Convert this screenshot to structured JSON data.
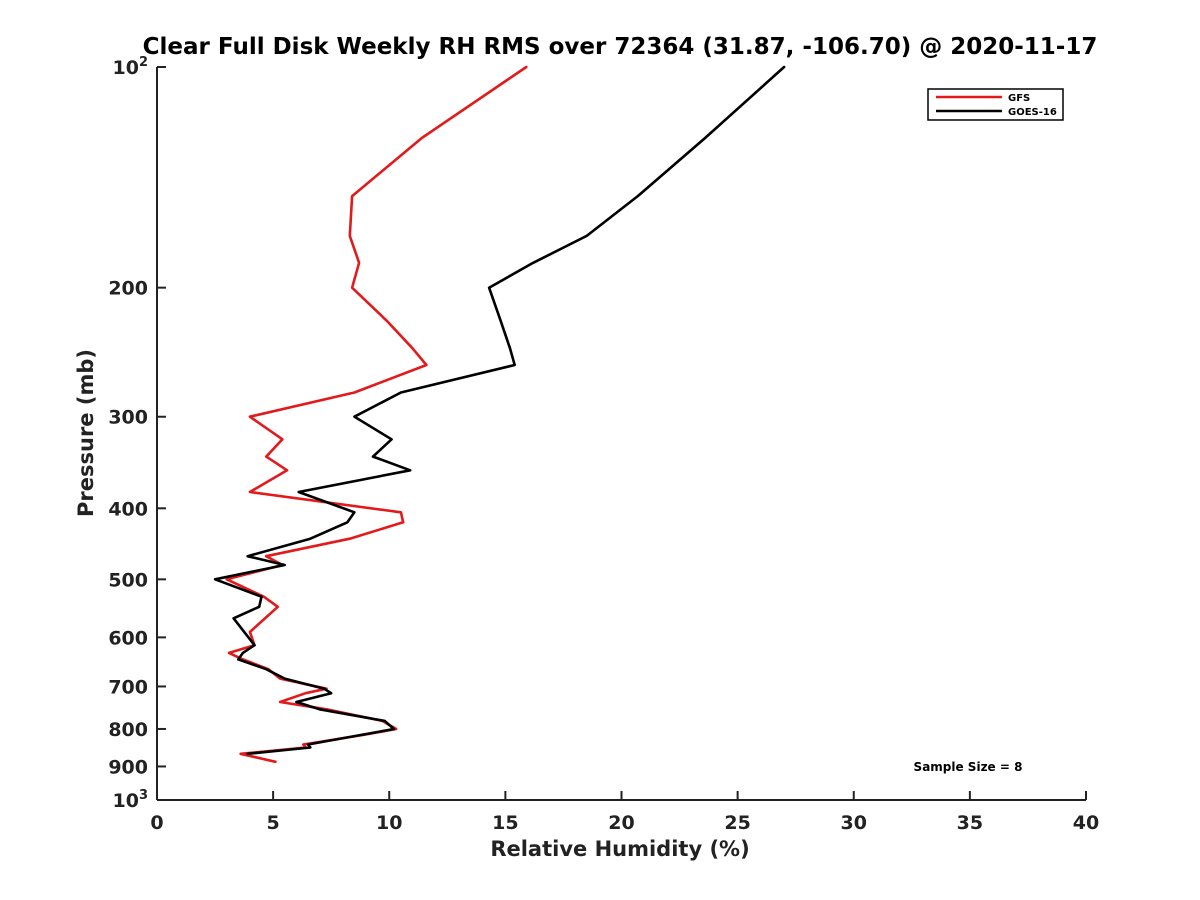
{
  "chart_data": {
    "type": "line",
    "title": "Clear Full Disk Weekly RH RMS over 72364 (31.87, -106.70) @ 2020-11-17",
    "xlabel": "Relative Humidity (%)",
    "ylabel": "Pressure (mb)",
    "xlim": [
      0,
      40
    ],
    "ylim": [
      100,
      1000
    ],
    "yscale": "log",
    "y_reversed": true,
    "x_ticks": [
      "0",
      "5",
      "10",
      "15",
      "20",
      "25",
      "30",
      "35",
      "40"
    ],
    "y_ticks": [
      {
        "value": 100,
        "base": "10",
        "exp": "2"
      },
      {
        "value": 200,
        "label": "200"
      },
      {
        "value": 300,
        "label": "300"
      },
      {
        "value": 400,
        "label": "400"
      },
      {
        "value": 500,
        "label": "500"
      },
      {
        "value": 600,
        "label": "600"
      },
      {
        "value": 700,
        "label": "700"
      },
      {
        "value": 800,
        "label": "800"
      },
      {
        "value": 900,
        "label": "900"
      },
      {
        "value": 1000,
        "base": "10",
        "exp": "3"
      }
    ],
    "legend_position": "top-right",
    "annotation": "Sample Size = 8",
    "series": [
      {
        "name": "GFS",
        "color": "#e31a1c",
        "points": [
          [
            15.9,
            100
          ],
          [
            11.4,
            125
          ],
          [
            8.4,
            150
          ],
          [
            8.3,
            170
          ],
          [
            8.7,
            185
          ],
          [
            8.4,
            200
          ],
          [
            9.9,
            222
          ],
          [
            11.0,
            242
          ],
          [
            11.6,
            255
          ],
          [
            8.5,
            278
          ],
          [
            4.0,
            300
          ],
          [
            5.4,
            322
          ],
          [
            4.7,
            340
          ],
          [
            5.6,
            355
          ],
          [
            4.0,
            380
          ],
          [
            10.5,
            405
          ],
          [
            10.6,
            418
          ],
          [
            8.3,
            440
          ],
          [
            4.7,
            465
          ],
          [
            5.4,
            478
          ],
          [
            3.0,
            500
          ],
          [
            4.6,
            528
          ],
          [
            5.2,
            545
          ],
          [
            4.0,
            590
          ],
          [
            4.2,
            615
          ],
          [
            3.1,
            630
          ],
          [
            3.7,
            643
          ],
          [
            4.8,
            663
          ],
          [
            5.3,
            683
          ],
          [
            7.3,
            705
          ],
          [
            6.4,
            715
          ],
          [
            5.3,
            735
          ],
          [
            7.3,
            752
          ],
          [
            9.7,
            780
          ],
          [
            10.3,
            800
          ],
          [
            8.9,
            815
          ],
          [
            6.3,
            840
          ],
          [
            6.4,
            848
          ],
          [
            3.6,
            865
          ],
          [
            5.1,
            887
          ]
        ]
      },
      {
        "name": "GOES-16",
        "color": "#000000",
        "points": [
          [
            27.0,
            100
          ],
          [
            23.6,
            125
          ],
          [
            20.7,
            150
          ],
          [
            18.5,
            170
          ],
          [
            16.2,
            185
          ],
          [
            14.3,
            200
          ],
          [
            14.8,
            222
          ],
          [
            15.2,
            242
          ],
          [
            15.4,
            255
          ],
          [
            10.5,
            278
          ],
          [
            8.5,
            300
          ],
          [
            10.1,
            322
          ],
          [
            9.3,
            340
          ],
          [
            10.9,
            355
          ],
          [
            6.1,
            380
          ],
          [
            8.5,
            405
          ],
          [
            8.2,
            418
          ],
          [
            6.6,
            440
          ],
          [
            3.9,
            465
          ],
          [
            5.5,
            478
          ],
          [
            2.5,
            500
          ],
          [
            4.5,
            528
          ],
          [
            4.4,
            545
          ],
          [
            3.3,
            565
          ],
          [
            4.2,
            615
          ],
          [
            3.7,
            630
          ],
          [
            3.5,
            643
          ],
          [
            4.7,
            663
          ],
          [
            5.5,
            683
          ],
          [
            7.2,
            705
          ],
          [
            7.5,
            715
          ],
          [
            6.0,
            735
          ],
          [
            7.0,
            752
          ],
          [
            9.8,
            780
          ],
          [
            10.2,
            800
          ],
          [
            8.8,
            815
          ],
          [
            6.5,
            840
          ],
          [
            6.6,
            848
          ],
          [
            3.9,
            865
          ]
        ]
      }
    ]
  }
}
